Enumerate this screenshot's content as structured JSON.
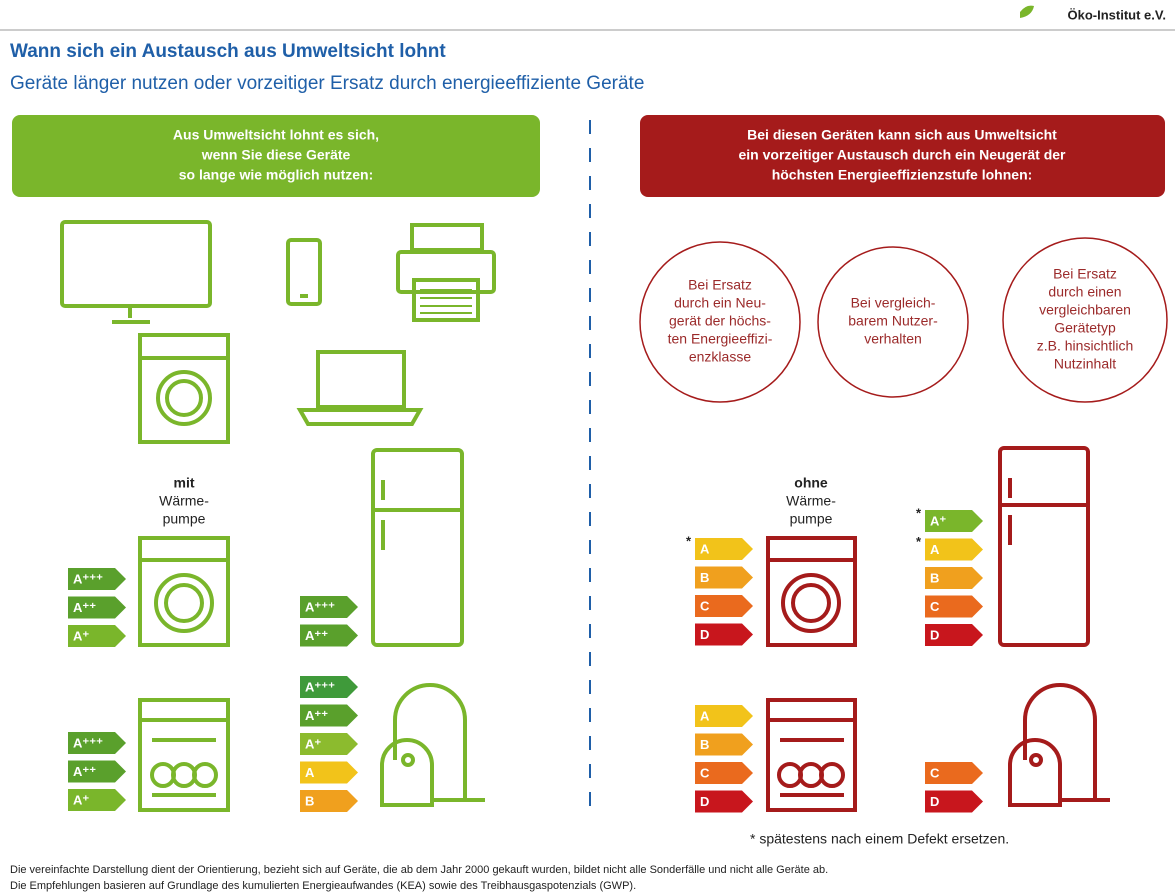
{
  "logo": "Öko-Institut e.V.",
  "header": {
    "title": "Wann sich ein Austausch aus Umweltsicht lohnt",
    "subtitle": "Geräte länger nutzen oder vorzeitiger Ersatz durch energieeffiziente Geräte"
  },
  "left_banner": [
    "Aus Umweltsicht lohnt es sich,",
    "wenn Sie diese Geräte",
    "so lange wie möglich nutzen:"
  ],
  "right_banner": [
    "Bei diesen Geräten kann sich aus Umweltsicht",
    "ein vorzeitiger Austausch durch ein Neugerät der",
    "höchsten Energieeffizienzstufe lohnen:"
  ],
  "circles": [
    [
      "Bei Ersatz",
      "durch ein Neu-",
      "gerät der höchs-",
      "ten Energieeffizi-",
      "enzklasse"
    ],
    [
      "Bei vergleich-",
      "barem Nutzer-",
      "verhalten"
    ],
    [
      "Bei Ersatz",
      "durch einen",
      "vergleichbaren",
      "Gerätetyp",
      "z.B. hinsichtlich",
      "Nutzinhalt"
    ]
  ],
  "dryer_left_caption": [
    "mit",
    "Wärme-",
    "pumpe"
  ],
  "dryer_right_caption": [
    "ohne",
    "Wärme-",
    "pumpe"
  ],
  "label_groups": [
    {
      "labels": [
        {
          "text": "A⁺⁺⁺",
          "color": "#5aa02c"
        },
        {
          "text": "A⁺⁺",
          "color": "#5aa02c"
        },
        {
          "text": "A⁺",
          "color": "#7ab62b"
        }
      ]
    },
    {
      "labels": [
        {
          "text": "A⁺⁺⁺",
          "color": "#5aa02c"
        },
        {
          "text": "A⁺⁺",
          "color": "#5aa02c"
        }
      ]
    },
    {
      "labels": [
        {
          "text": "A⁺⁺⁺",
          "color": "#5aa02c"
        },
        {
          "text": "A⁺⁺",
          "color": "#5aa02c"
        },
        {
          "text": "A⁺",
          "color": "#7ab62b"
        }
      ]
    },
    {
      "labels": [
        {
          "text": "A⁺⁺⁺",
          "color": "#3f9a3a"
        },
        {
          "text": "A⁺⁺",
          "color": "#5aa02c"
        },
        {
          "text": "A⁺",
          "color": "#8cbb2e"
        },
        {
          "text": "A",
          "color": "#f2c31a"
        },
        {
          "text": "B",
          "color": "#f0a01e"
        }
      ]
    },
    {
      "labels": [
        {
          "text": "A",
          "color": "#f2c31a",
          "mark": "*"
        },
        {
          "text": "B",
          "color": "#f0a01e"
        },
        {
          "text": "C",
          "color": "#ea6a1e"
        },
        {
          "text": "D",
          "color": "#c8161d"
        }
      ]
    },
    {
      "labels": [
        {
          "text": "A⁺",
          "color": "#7ab62b",
          "mark": "*"
        },
        {
          "text": "A",
          "color": "#f2c31a",
          "mark": "*"
        },
        {
          "text": "B",
          "color": "#f0a01e"
        },
        {
          "text": "C",
          "color": "#ea6a1e"
        },
        {
          "text": "D",
          "color": "#c8161d"
        }
      ]
    },
    {
      "labels": [
        {
          "text": "A",
          "color": "#f2c31a"
        },
        {
          "text": "B",
          "color": "#f0a01e"
        },
        {
          "text": "C",
          "color": "#ea6a1e"
        },
        {
          "text": "D",
          "color": "#c8161d"
        }
      ]
    },
    {
      "labels": [
        {
          "text": "C",
          "color": "#ea6a1e"
        },
        {
          "text": "D",
          "color": "#c8161d"
        }
      ]
    }
  ],
  "footnote": "* spätestens nach einem Defekt ersetzen.",
  "disclaimer": [
    "Die vereinfachte Darstellung dient der Orientierung, bezieht sich auf Geräte, die ab dem Jahr 2000 gekauft wurden, bildet nicht alle Sonderfälle und nicht alle Geräte ab.",
    "Die Empfehlungen basieren auf Grundlage des kumulierten Energieaufwandes (KEA) sowie des Treibhausgaspotenzials (GWP)."
  ]
}
